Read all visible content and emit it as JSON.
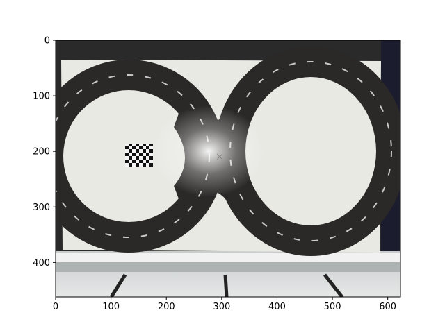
{
  "chart_data": {
    "type": "image",
    "title": "",
    "xlabel": "",
    "ylabel": "",
    "xlim": [
      0,
      623
    ],
    "ylim": [
      462,
      0
    ],
    "x_ticks": [
      0,
      100,
      200,
      300,
      400,
      500,
      600
    ],
    "y_ticks": [
      0,
      100,
      200,
      300,
      400
    ],
    "grid": false,
    "legend": "none",
    "image_content": {
      "subject": "figure-eight track on a white board",
      "track_color": "#2b2828",
      "board_color": "#e9e9e4",
      "marker": "checkerboard pattern",
      "markings": "dashed lane markings along the track"
    }
  }
}
